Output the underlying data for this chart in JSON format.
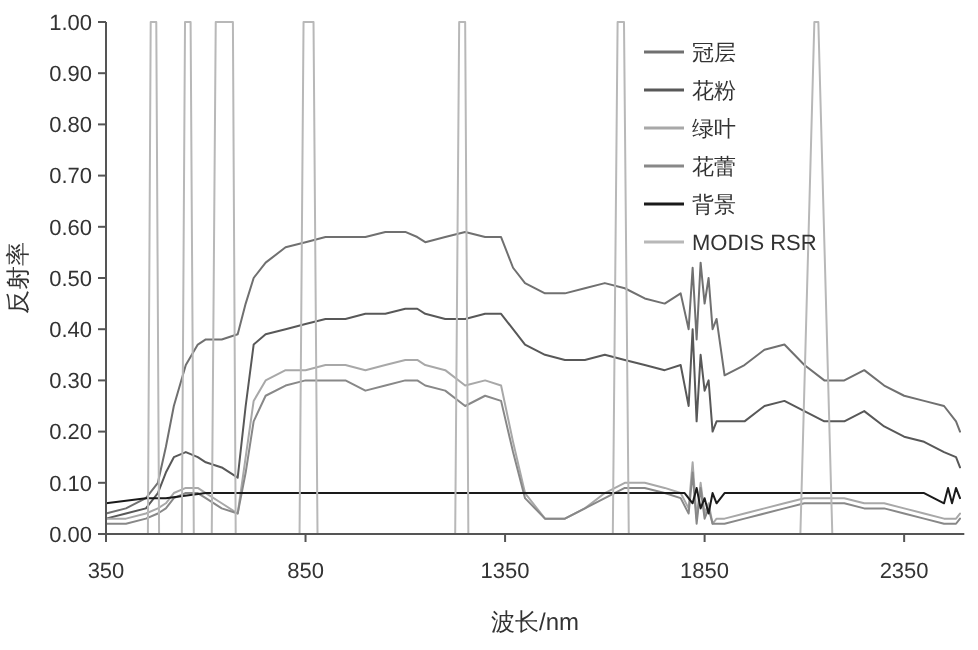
{
  "chart_data": {
    "type": "line",
    "xlabel": "波长/nm",
    "ylabel": "反射率",
    "xlim": [
      350,
      2500
    ],
    "ylim": [
      0,
      1
    ],
    "xticks": [
      350,
      850,
      1350,
      1850,
      2350
    ],
    "yticks": [
      {
        "value": 0,
        "label": "0.00"
      },
      {
        "value": 0.1,
        "label": "0.10"
      },
      {
        "value": 0.2,
        "label": "0.20"
      },
      {
        "value": 0.3,
        "label": "0.30"
      },
      {
        "value": 0.4,
        "label": "0.40"
      },
      {
        "value": 0.5,
        "label": "0.50"
      },
      {
        "value": 0.6,
        "label": "0.60"
      },
      {
        "value": 0.7,
        "label": "0.70"
      },
      {
        "value": 0.8,
        "label": "0.80"
      },
      {
        "value": 0.9,
        "label": "0.90"
      },
      {
        "value": 1,
        "label": "1.00"
      }
    ],
    "legend": "top right",
    "series": [
      {
        "name": "冠层",
        "color": "#707070",
        "x": [
          350,
          400,
          450,
          480,
          500,
          520,
          550,
          580,
          600,
          640,
          680,
          700,
          720,
          750,
          800,
          850,
          900,
          950,
          1000,
          1050,
          1100,
          1130,
          1150,
          1200,
          1250,
          1300,
          1340,
          1370,
          1400,
          1450,
          1500,
          1550,
          1600,
          1650,
          1700,
          1750,
          1790,
          1810,
          1820,
          1830,
          1840,
          1850,
          1860,
          1870,
          1880,
          1900,
          1950,
          2000,
          2050,
          2100,
          2150,
          2200,
          2250,
          2300,
          2350,
          2400,
          2450,
          2480,
          2490
        ],
        "values": [
          0.04,
          0.05,
          0.07,
          0.1,
          0.17,
          0.25,
          0.33,
          0.37,
          0.38,
          0.38,
          0.39,
          0.45,
          0.5,
          0.53,
          0.56,
          0.57,
          0.58,
          0.58,
          0.58,
          0.59,
          0.59,
          0.58,
          0.57,
          0.58,
          0.59,
          0.58,
          0.58,
          0.52,
          0.49,
          0.47,
          0.47,
          0.48,
          0.49,
          0.48,
          0.46,
          0.45,
          0.47,
          0.4,
          0.52,
          0.38,
          0.53,
          0.45,
          0.5,
          0.4,
          0.42,
          0.31,
          0.33,
          0.36,
          0.37,
          0.33,
          0.3,
          0.3,
          0.32,
          0.29,
          0.27,
          0.26,
          0.25,
          0.22,
          0.2
        ]
      },
      {
        "name": "花粉",
        "color": "#585858",
        "x": [
          350,
          400,
          450,
          480,
          500,
          520,
          550,
          580,
          600,
          640,
          680,
          700,
          720,
          750,
          800,
          850,
          900,
          950,
          1000,
          1050,
          1100,
          1130,
          1150,
          1200,
          1250,
          1300,
          1340,
          1370,
          1400,
          1450,
          1500,
          1550,
          1600,
          1650,
          1700,
          1750,
          1790,
          1810,
          1820,
          1830,
          1840,
          1850,
          1860,
          1870,
          1880,
          1900,
          1950,
          2000,
          2050,
          2100,
          2150,
          2200,
          2250,
          2300,
          2350,
          2400,
          2450,
          2480,
          2490
        ],
        "values": [
          0.03,
          0.04,
          0.05,
          0.08,
          0.12,
          0.15,
          0.16,
          0.15,
          0.14,
          0.13,
          0.11,
          0.25,
          0.37,
          0.39,
          0.4,
          0.41,
          0.42,
          0.42,
          0.43,
          0.43,
          0.44,
          0.44,
          0.43,
          0.42,
          0.42,
          0.43,
          0.43,
          0.4,
          0.37,
          0.35,
          0.34,
          0.34,
          0.35,
          0.34,
          0.33,
          0.32,
          0.33,
          0.25,
          0.4,
          0.22,
          0.35,
          0.28,
          0.3,
          0.2,
          0.22,
          0.22,
          0.22,
          0.25,
          0.26,
          0.24,
          0.22,
          0.22,
          0.24,
          0.21,
          0.19,
          0.18,
          0.16,
          0.15,
          0.13
        ]
      },
      {
        "name": "绿叶",
        "color": "#a8a8a8",
        "x": [
          350,
          400,
          450,
          480,
          500,
          520,
          550,
          580,
          600,
          640,
          680,
          700,
          720,
          750,
          800,
          850,
          900,
          950,
          1000,
          1050,
          1100,
          1130,
          1150,
          1200,
          1250,
          1300,
          1340,
          1370,
          1400,
          1450,
          1500,
          1550,
          1600,
          1650,
          1700,
          1750,
          1790,
          1810,
          1820,
          1830,
          1840,
          1850,
          1860,
          1870,
          1880,
          1900,
          1950,
          2000,
          2050,
          2100,
          2150,
          2200,
          2250,
          2300,
          2350,
          2400,
          2450,
          2480,
          2490
        ],
        "values": [
          0.03,
          0.03,
          0.04,
          0.05,
          0.06,
          0.08,
          0.09,
          0.09,
          0.08,
          0.06,
          0.04,
          0.15,
          0.26,
          0.3,
          0.32,
          0.32,
          0.33,
          0.33,
          0.32,
          0.33,
          0.34,
          0.34,
          0.33,
          0.32,
          0.29,
          0.3,
          0.29,
          0.18,
          0.08,
          0.03,
          0.03,
          0.05,
          0.08,
          0.1,
          0.1,
          0.09,
          0.08,
          0.05,
          0.14,
          0.03,
          0.1,
          0.04,
          0.06,
          0.02,
          0.03,
          0.03,
          0.04,
          0.05,
          0.06,
          0.07,
          0.07,
          0.07,
          0.06,
          0.06,
          0.05,
          0.04,
          0.03,
          0.03,
          0.04
        ]
      },
      {
        "name": "花蕾",
        "color": "#888888",
        "x": [
          350,
          400,
          450,
          480,
          500,
          520,
          550,
          580,
          600,
          640,
          680,
          700,
          720,
          750,
          800,
          850,
          900,
          950,
          1000,
          1050,
          1100,
          1130,
          1150,
          1200,
          1250,
          1300,
          1340,
          1370,
          1400,
          1450,
          1500,
          1550,
          1600,
          1650,
          1700,
          1750,
          1790,
          1810,
          1820,
          1830,
          1840,
          1850,
          1860,
          1870,
          1880,
          1900,
          1950,
          2000,
          2050,
          2100,
          2150,
          2200,
          2250,
          2300,
          2350,
          2400,
          2450,
          2480,
          2490
        ],
        "values": [
          0.02,
          0.02,
          0.03,
          0.04,
          0.05,
          0.07,
          0.08,
          0.08,
          0.07,
          0.05,
          0.04,
          0.12,
          0.22,
          0.27,
          0.29,
          0.3,
          0.3,
          0.3,
          0.28,
          0.29,
          0.3,
          0.3,
          0.29,
          0.28,
          0.25,
          0.27,
          0.26,
          0.16,
          0.07,
          0.03,
          0.03,
          0.05,
          0.07,
          0.09,
          0.09,
          0.08,
          0.07,
          0.04,
          0.12,
          0.02,
          0.09,
          0.03,
          0.05,
          0.02,
          0.02,
          0.02,
          0.03,
          0.04,
          0.05,
          0.06,
          0.06,
          0.06,
          0.05,
          0.05,
          0.04,
          0.03,
          0.02,
          0.02,
          0.03
        ]
      },
      {
        "name": "背景",
        "color": "#1a1a1a",
        "x": [
          350,
          450,
          500,
          600,
          800,
          1000,
          1300,
          1350,
          1400,
          1800,
          1820,
          1830,
          1840,
          1850,
          1860,
          1870,
          1880,
          1900,
          2000,
          2200,
          2400,
          2450,
          2460,
          2470,
          2480,
          2490
        ],
        "values": [
          0.06,
          0.07,
          0.07,
          0.08,
          0.08,
          0.08,
          0.08,
          0.08,
          0.08,
          0.08,
          0.06,
          0.09,
          0.05,
          0.07,
          0.04,
          0.08,
          0.06,
          0.08,
          0.08,
          0.08,
          0.08,
          0.06,
          0.09,
          0.06,
          0.09,
          0.07
        ]
      },
      {
        "name": "MODIS RSR",
        "color": "#b8b8b8",
        "x": [
          350,
          455,
          462,
          476,
          483,
          540,
          548,
          562,
          570,
          615,
          625,
          668,
          675,
          835,
          845,
          870,
          880,
          1225,
          1235,
          1250,
          1258,
          1620,
          1632,
          1648,
          1660,
          2090,
          2125,
          2135,
          2170,
          2500
        ],
        "values": [
          0,
          0,
          1,
          1,
          0,
          0,
          1,
          1,
          0,
          0,
          1,
          1,
          0,
          0,
          1,
          1,
          0,
          0,
          1,
          1,
          0,
          0,
          1,
          1,
          0,
          0,
          1,
          1,
          0,
          0
        ]
      }
    ]
  }
}
